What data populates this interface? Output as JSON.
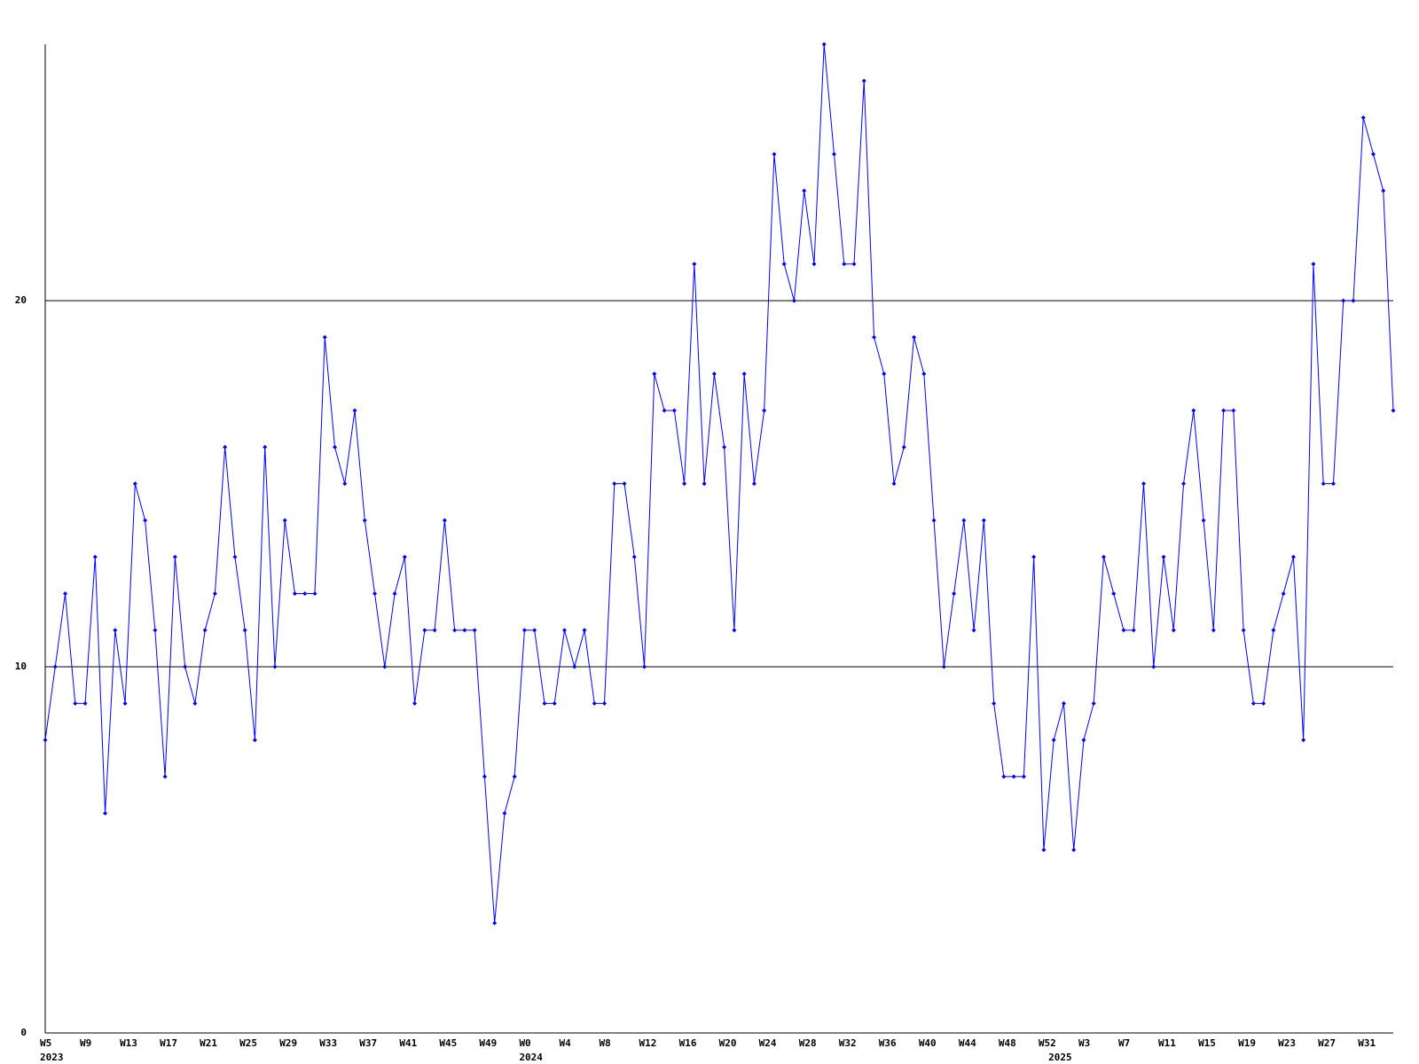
{
  "chart_data": {
    "type": "line",
    "color": "#0000ff",
    "categories": [
      "W5",
      null,
      null,
      null,
      "W9",
      null,
      null,
      null,
      "W13",
      null,
      null,
      null,
      "W17",
      null,
      null,
      null,
      "W21",
      null,
      null,
      null,
      "W25",
      null,
      null,
      null,
      "W29",
      null,
      null,
      null,
      "W33",
      null,
      null,
      null,
      "W37",
      null,
      null,
      null,
      "W41",
      null,
      null,
      null,
      "W45",
      null,
      null,
      null,
      "W49",
      null,
      null,
      null,
      "W0",
      null,
      null,
      null,
      "W4",
      null,
      null,
      null,
      "W8",
      null,
      null,
      null,
      "W12",
      null,
      null,
      null,
      "W16",
      null,
      null,
      null,
      "W20",
      null,
      null,
      null,
      "W24",
      null,
      null,
      null,
      "W28",
      null,
      null,
      null,
      "W32",
      null,
      null,
      null,
      "W36",
      null,
      null,
      null,
      "W40",
      null,
      null,
      null,
      "W44",
      null,
      null,
      null,
      "W48",
      null,
      null,
      null,
      "W52",
      null,
      null,
      null,
      "W3",
      null,
      null,
      null,
      "W7",
      null,
      null,
      null,
      "W11",
      null,
      null,
      null,
      "W15",
      null,
      null,
      null,
      "W19",
      null,
      null,
      null,
      "W23",
      null,
      null,
      null,
      "W27",
      null,
      null,
      null,
      "W31",
      null,
      null,
      null
    ],
    "years": [
      "2023",
      null,
      null,
      null,
      null,
      null,
      null,
      null,
      null,
      null,
      null,
      null,
      null,
      null,
      null,
      null,
      null,
      null,
      null,
      null,
      null,
      null,
      null,
      null,
      null,
      null,
      null,
      null,
      null,
      null,
      null,
      null,
      null,
      null,
      null,
      null,
      null,
      null,
      null,
      null,
      null,
      null,
      null,
      null,
      null,
      null,
      null,
      null,
      "2024",
      null,
      null,
      null,
      null,
      null,
      null,
      null,
      null,
      null,
      null,
      null,
      null,
      null,
      null,
      null,
      null,
      null,
      null,
      null,
      null,
      null,
      null,
      null,
      null,
      null,
      null,
      null,
      null,
      null,
      null,
      null,
      null,
      null,
      null,
      null,
      null,
      null,
      null,
      null,
      null,
      null,
      null,
      null,
      null,
      null,
      null,
      null,
      null,
      null,
      null,
      null,
      null,
      "2025",
      null,
      null,
      null,
      null,
      null,
      null,
      null,
      null,
      null,
      null,
      null,
      null,
      null,
      null,
      null,
      null,
      null,
      null,
      null,
      null,
      null,
      null,
      null,
      null,
      null,
      null,
      null,
      null,
      null,
      null,
      null,
      null,
      null,
      null
    ],
    "values": [
      8,
      10,
      12,
      9,
      9,
      13,
      6,
      11,
      9,
      15,
      14,
      11,
      7,
      13,
      10,
      9,
      11,
      12,
      16,
      13,
      11,
      8,
      16,
      10,
      14,
      12,
      12,
      12,
      19,
      16,
      15,
      17,
      14,
      12,
      10,
      12,
      13,
      9,
      11,
      11,
      14,
      11,
      11,
      11,
      7,
      3,
      6,
      7,
      11,
      11,
      9,
      9,
      11,
      10,
      11,
      9,
      9,
      15,
      15,
      13,
      10,
      18,
      17,
      17,
      15,
      21,
      15,
      18,
      16,
      11,
      18,
      15,
      17,
      24,
      21,
      20,
      23,
      21,
      27,
      24,
      21,
      21,
      26,
      19,
      18,
      15,
      16,
      19,
      18,
      14,
      10,
      12,
      14,
      11,
      14,
      9,
      7,
      7,
      7,
      13,
      5,
      8,
      9,
      5,
      8,
      9,
      13,
      12,
      11,
      11,
      15,
      10,
      13,
      11,
      15,
      17,
      14,
      11,
      17,
      17,
      11,
      9,
      9,
      11,
      12,
      13,
      8,
      21,
      15,
      15,
      20,
      20,
      25,
      24,
      23,
      17
    ],
    "ylim": [
      0,
      27
    ],
    "yticks": [
      0,
      10,
      20
    ],
    "grid": true
  }
}
